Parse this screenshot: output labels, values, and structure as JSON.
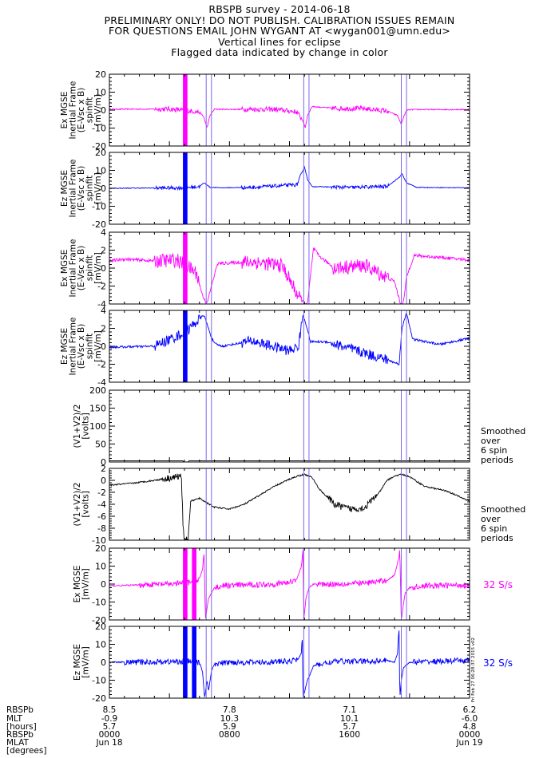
{
  "header": {
    "lines": [
      "RBSPB survey - 2014-06-18",
      "PRELIMINARY ONLY! DO NOT PUBLISH. CALIBRATION ISSUES REMAIN",
      "FOR QUESTIONS EMAIL JOHN WYGANT AT <wygan001@umn.edu>",
      "Vertical lines for eclipse",
      "Flagged data indicated by change in color"
    ]
  },
  "side_stamp": "Fri Feb 27 06:28:37 2015 v02",
  "colors": {
    "magenta": "#ff00ff",
    "blue": "#0000ff",
    "black": "#000000",
    "eclipse": "#7b68ee"
  },
  "chart_data": {
    "type": "line",
    "x_unit": "UT hours (2014-06-18)",
    "x_range": [
      0,
      24
    ],
    "eclipse_lines": [
      6.45,
      6.8,
      12.95,
      13.3,
      19.45,
      19.8
    ],
    "panels": [
      {
        "id": "ex1",
        "ylabel": [
          "Ex MGSE",
          "Inertial Frame",
          "(E-Vsc x B)",
          "spinfit",
          "[mV/m]"
        ],
        "ylim": [
          -20,
          20
        ],
        "yticks": [
          -20,
          -10,
          0,
          10,
          20
        ],
        "color": "magenta",
        "noise": 0.35,
        "gaps": [
          [
            3.0,
            6.0
          ],
          [
            8.8,
            12.8
          ],
          [
            14.8,
            18.6
          ]
        ],
        "flag_bands": [
          [
            4.9,
            5.2
          ]
        ],
        "series": {
          "x": [
            0,
            4,
            6.0,
            6.3,
            6.5,
            6.7,
            7.0,
            8.0,
            9.5,
            11.0,
            12.5,
            12.9,
            13.05,
            13.2,
            13.5,
            15.0,
            17.0,
            18.5,
            19.2,
            19.45,
            19.55,
            19.8,
            20.2,
            24
          ],
          "y": [
            0.5,
            0.6,
            -1,
            -4,
            -10,
            -3,
            0.5,
            0.4,
            0.5,
            0.4,
            -1,
            -6,
            -10,
            -3,
            2,
            1,
            0.8,
            -0.5,
            -3,
            -8,
            -5,
            0,
            0.3,
            0.3
          ]
        }
      },
      {
        "id": "ez1",
        "ylabel": [
          "Ez MGSE",
          "Inertial Frame",
          "(E-Vsc x B)",
          "spinfit",
          "[mV/m]"
        ],
        "ylim": [
          -20,
          20
        ],
        "yticks": [
          -20,
          -10,
          0,
          10,
          20
        ],
        "color": "blue",
        "noise": 0.25,
        "gaps": [
          [
            3.0,
            6.0
          ],
          [
            8.8,
            12.8
          ],
          [
            14.8,
            18.6
          ]
        ],
        "flag_bands": [
          [
            4.9,
            5.2
          ]
        ],
        "series": {
          "x": [
            0,
            5.0,
            6.0,
            6.3,
            6.5,
            6.7,
            7.5,
            9.5,
            12.5,
            12.8,
            13.0,
            13.2,
            13.5,
            16.0,
            18.5,
            19.3,
            19.5,
            19.8,
            20.5,
            24
          ],
          "y": [
            0,
            0.3,
            1,
            3,
            2,
            0.5,
            0.3,
            0.5,
            2,
            8,
            12,
            5,
            1,
            0.5,
            1,
            6,
            8,
            3,
            0.5,
            0.3
          ]
        }
      },
      {
        "id": "ex2",
        "ylabel": [
          "Ex MGSE",
          "Inertial Frame",
          "(E-Vsc x B)",
          "spinfit",
          "[mV/m]"
        ],
        "ylim": [
          -4,
          4
        ],
        "yticks": [
          -4,
          -2,
          0,
          2,
          4
        ],
        "color": "magenta",
        "noise": 0.25,
        "gaps": [
          [
            3.0,
            6.0
          ],
          [
            8.8,
            12.8
          ],
          [
            14.8,
            18.6
          ]
        ],
        "flag_bands": [
          [
            4.9,
            5.2
          ]
        ],
        "series": {
          "x": [
            0,
            1.0,
            3.0,
            4.5,
            5.8,
            6.2,
            6.5,
            6.8,
            7.2,
            9.5,
            11.5,
            12.7,
            13.2,
            13.6,
            14.0,
            15.0,
            17.0,
            19.0,
            19.4,
            19.6,
            19.8,
            20.3,
            22.0,
            24
          ],
          "y": [
            0.8,
            1.0,
            0.8,
            0.9,
            -0.5,
            -3,
            -4,
            -2,
            0.5,
            0.7,
            0.3,
            -3.5,
            -4,
            2.2,
            1.3,
            0,
            0.3,
            -1.5,
            -4,
            -3.8,
            -1,
            1.4,
            1.2,
            0.9
          ]
        }
      },
      {
        "id": "ez2",
        "ylabel": [
          "Ez MGSE",
          "Inertial Frame",
          "(E-Vsc x B)",
          "spinfit",
          "[mV/m]"
        ],
        "ylim": [
          -4,
          4
        ],
        "yticks": [
          -4,
          -2,
          0,
          2,
          4
        ],
        "color": "blue",
        "noise": 0.18,
        "gaps": [
          [
            3.0,
            6.0
          ],
          [
            8.8,
            12.8
          ],
          [
            14.8,
            18.6
          ]
        ],
        "flag_bands": [
          [
            4.9,
            5.2
          ]
        ],
        "series": {
          "x": [
            0,
            3.0,
            5.0,
            6.3,
            6.5,
            6.8,
            7.0,
            7.5,
            9.5,
            12.0,
            12.6,
            12.9,
            13.1,
            13.4,
            14.5,
            16.5,
            18.5,
            19.3,
            19.5,
            19.8,
            20.2,
            22.0,
            24
          ],
          "y": [
            -0.1,
            0,
            1.5,
            3.5,
            2.5,
            1,
            0.3,
            0,
            0.6,
            -0.5,
            0,
            3.5,
            2.5,
            0.5,
            0.5,
            -0.5,
            -1.5,
            -2,
            2,
            3.8,
            0.8,
            0.2,
            0.9
          ]
        }
      },
      {
        "id": "v12",
        "ylabel": [
          "(V1+V2)/2",
          "[volts]"
        ],
        "ylim": [
          0,
          200
        ],
        "yticks": [
          0,
          50,
          100,
          150,
          200
        ],
        "color": "black",
        "noise": 0,
        "note": [
          "Smoothed",
          "over",
          "6 spin",
          "periods"
        ],
        "series": {
          "x": [
            0,
            4.9,
            5.0,
            5.2,
            5.3,
            24
          ],
          "y": [
            3,
            3,
            -2,
            -2,
            3,
            3
          ]
        }
      },
      {
        "id": "v12b",
        "ylabel": [
          "(V1+V2)/2",
          "[volts]"
        ],
        "ylim": [
          -10,
          2
        ],
        "yticks": [
          -10,
          -8,
          -6,
          -4,
          -2,
          0,
          2
        ],
        "color": "black",
        "noise": 0.12,
        "gaps": [
          [
            3.5,
            5.4
          ],
          [
            14.5,
            17.8
          ]
        ],
        "note": [
          "Smoothed",
          "over",
          "6 spin",
          "periods"
        ],
        "series": {
          "x": [
            0,
            1.5,
            3.0,
            4.0,
            4.5,
            4.8,
            4.9,
            5.0,
            5.25,
            5.4,
            6.0,
            7.0,
            8.0,
            9.0,
            10.0,
            11.0,
            12.0,
            12.5,
            13.0,
            13.5,
            14.0,
            15.0,
            16.0,
            17.0,
            18.0,
            18.5,
            19.0,
            19.5,
            20.0,
            21.0,
            22.5,
            24
          ],
          "y": [
            -0.8,
            -0.5,
            0,
            0.4,
            0.6,
            0.7,
            -7,
            -10,
            -10,
            -3.5,
            -3,
            -4.5,
            -4.8,
            -4.0,
            -2.5,
            -1.0,
            0.2,
            0.7,
            1.0,
            0.5,
            -1.5,
            -4.0,
            -4.8,
            -4.6,
            -2.0,
            0.0,
            0.7,
            1.0,
            0.6,
            -1.0,
            -1.8,
            -3.5
          ]
        }
      },
      {
        "id": "ex32",
        "ylabel": [
          "Ex MGSE",
          "[mV/m]"
        ],
        "ylim": [
          -20,
          20
        ],
        "yticks": [
          -20,
          -10,
          0,
          10,
          20
        ],
        "color": "magenta",
        "noise": 0.4,
        "gaps": [
          [
            2.0,
            6.0
          ],
          [
            7.0,
            12.5
          ],
          [
            13.8,
            18.5
          ],
          [
            20.2,
            24
          ]
        ],
        "flag_bands": [
          [
            4.9,
            5.2
          ],
          [
            5.5,
            5.8
          ]
        ],
        "note": [
          "32 S/s"
        ],
        "series": {
          "x": [
            0,
            2.0,
            4.0,
            5.5,
            6.0,
            6.2,
            6.28,
            6.3,
            6.4,
            6.6,
            7.0,
            7.5,
            9.0,
            11.0,
            12.0,
            12.5,
            12.8,
            12.9,
            12.95,
            13.1,
            13.3,
            13.6,
            15.0,
            17.0,
            18.5,
            19.0,
            19.3,
            19.35,
            19.45,
            19.7,
            20.0,
            21.0,
            24
          ],
          "y": [
            -1,
            -0.5,
            0,
            1,
            3,
            8,
            15,
            20,
            -20,
            -8,
            -2,
            -1,
            -0.5,
            0,
            1,
            3,
            10,
            20,
            -20,
            -8,
            -2,
            0,
            0,
            0.5,
            2,
            5,
            15,
            20,
            -20,
            -5,
            -2,
            -1,
            -0.5
          ]
        }
      },
      {
        "id": "ez32",
        "ylabel": [
          "Ez MGSE",
          "[mV/m]"
        ],
        "ylim": [
          -20,
          20
        ],
        "yticks": [
          -20,
          -10,
          0,
          10,
          20
        ],
        "color": "blue",
        "noise": 0.4,
        "gaps": [
          [
            1.0,
            6.0
          ],
          [
            7.0,
            12.5
          ],
          [
            13.8,
            18.5
          ],
          [
            20.2,
            24
          ]
        ],
        "flag_bands": [
          [
            4.9,
            5.2
          ],
          [
            5.5,
            5.8
          ]
        ],
        "note": [
          "32 S/s"
        ],
        "series": {
          "x": [
            0,
            2.0,
            4.0,
            5.6,
            6.0,
            6.2,
            6.35,
            6.5,
            6.6,
            6.8,
            7.0,
            8.0,
            10.0,
            12.0,
            12.6,
            12.8,
            12.85,
            12.9,
            13.2,
            13.6,
            15.0,
            17.0,
            18.5,
            19.0,
            19.2,
            19.3,
            19.35,
            19.45,
            19.6,
            20.0,
            22.0,
            24
          ],
          "y": [
            0,
            0,
            0.3,
            0.5,
            0,
            -5,
            -20,
            -10,
            -16,
            -5,
            -1,
            0,
            0,
            0.5,
            2,
            5,
            18,
            -20,
            -10,
            -2,
            0.5,
            0.5,
            1,
            0,
            5,
            20,
            -20,
            -10,
            -3,
            0,
            0.5,
            1
          ]
        }
      }
    ],
    "x_tick_hours": [
      0,
      4,
      8,
      12,
      16,
      20,
      24
    ],
    "ephemeris": {
      "row_labels": [
        [
          "RBSPb"
        ],
        [
          "MLT"
        ],
        [
          "[hours]"
        ],
        [
          "RBSPb"
        ],
        [
          "MLAT"
        ],
        [
          "[degrees]"
        ]
      ],
      "groups": [
        {
          "hour": 0,
          "values": [
            "8.5",
            "-0.9",
            "5.7",
            "0000",
            "Jun 18"
          ]
        },
        {
          "hour": 8,
          "values": [
            "7.8",
            "10.3",
            "5.9",
            "0800",
            ""
          ]
        },
        {
          "hour": 16,
          "values": [
            "7.1",
            "10.1",
            "5.7",
            "1600",
            ""
          ]
        },
        {
          "hour": 24,
          "values": [
            "6.2",
            "-6.0",
            "4.8",
            "0000",
            "Jun 19"
          ]
        }
      ]
    }
  }
}
